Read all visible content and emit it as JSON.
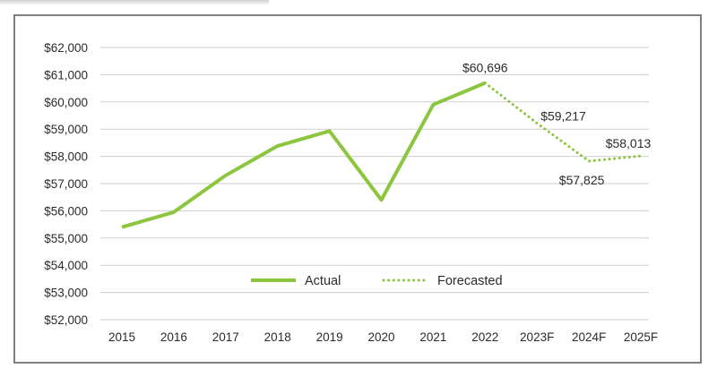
{
  "chart_data": {
    "type": "line",
    "title": "",
    "xlabel": "",
    "ylabel": "",
    "categories": [
      "2015",
      "2016",
      "2017",
      "2018",
      "2019",
      "2020",
      "2021",
      "2022",
      "2023F",
      "2024F",
      "2025F"
    ],
    "ylim": [
      52000,
      62000
    ],
    "yticks": [
      52000,
      53000,
      54000,
      55000,
      56000,
      57000,
      58000,
      59000,
      60000,
      61000,
      62000
    ],
    "ytick_labels": [
      "$52,000",
      "$53,000",
      "$54,000",
      "$55,000",
      "$56,000",
      "$57,000",
      "$58,000",
      "$59,000",
      "$60,000",
      "$61,000",
      "$62,000"
    ],
    "grid": true,
    "legend_position": "bottom-center",
    "series": [
      {
        "name": "Actual",
        "style": "solid",
        "color": "#8cc63f",
        "values": [
          55400,
          55950,
          57300,
          58380,
          58930,
          56400,
          59900,
          60696,
          null,
          null,
          null
        ]
      },
      {
        "name": "Forecasted",
        "style": "dotted",
        "color": "#8cc63f",
        "values": [
          null,
          null,
          null,
          null,
          null,
          null,
          null,
          60696,
          59217,
          57825,
          58013
        ]
      }
    ],
    "annotations": [
      {
        "category": "2022",
        "value": 60696,
        "text": "$60,696"
      },
      {
        "category": "2023F",
        "value": 59217,
        "text": "$59,217"
      },
      {
        "category": "2024F",
        "value": 57825,
        "text": "$57,825"
      },
      {
        "category": "2025F",
        "value": 58013,
        "text": "$58,013"
      }
    ]
  }
}
